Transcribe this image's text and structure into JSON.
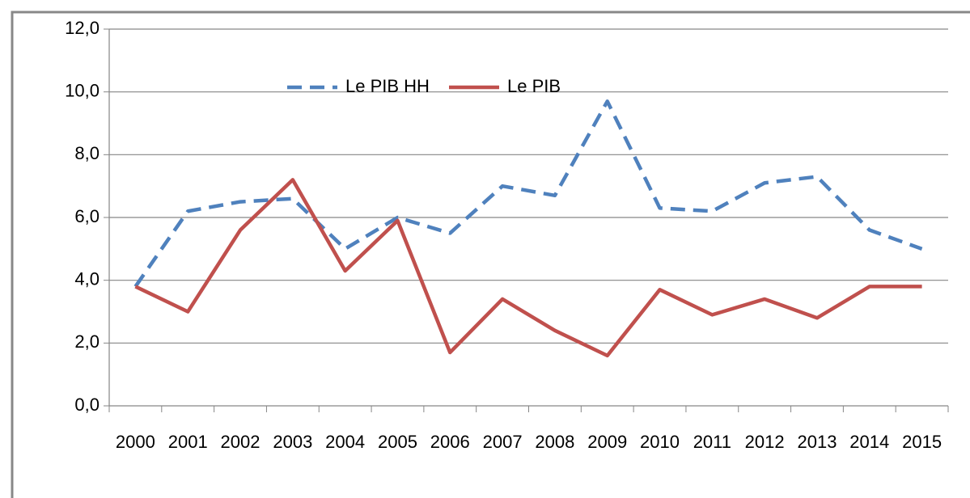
{
  "chart_data": {
    "type": "line",
    "categories": [
      "2000",
      "2001",
      "2002",
      "2003",
      "2004",
      "2005",
      "2006",
      "2007",
      "2008",
      "2009",
      "2010",
      "2011",
      "2012",
      "2013",
      "2014",
      "2015"
    ],
    "series": [
      {
        "name": "Le PIB HH",
        "color": "#4f81bd",
        "dashed": true,
        "values": [
          3.8,
          6.2,
          6.5,
          6.6,
          5.0,
          6.0,
          5.5,
          7.0,
          6.7,
          9.7,
          6.3,
          6.2,
          7.1,
          7.3,
          5.6,
          5.0
        ]
      },
      {
        "name": "Le PIB",
        "color": "#c0504d",
        "dashed": false,
        "values": [
          3.8,
          3.0,
          5.6,
          7.2,
          4.3,
          5.9,
          1.7,
          3.4,
          2.4,
          1.6,
          3.7,
          2.9,
          3.4,
          2.8,
          3.8,
          3.8
        ]
      }
    ],
    "ylim": [
      0,
      12
    ],
    "yticks": [
      {
        "value": 0,
        "label": "0,0"
      },
      {
        "value": 2,
        "label": "2,0"
      },
      {
        "value": 4,
        "label": "4,0"
      },
      {
        "value": 6,
        "label": "6,0"
      },
      {
        "value": 8,
        "label": "8,0"
      },
      {
        "value": 10,
        "label": "10,0"
      },
      {
        "value": 12,
        "label": "12,0"
      }
    ],
    "grid": true
  }
}
